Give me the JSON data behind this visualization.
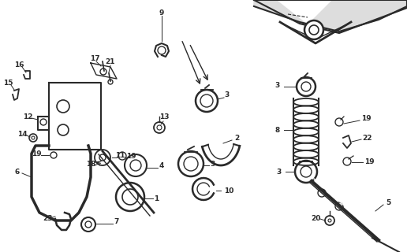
{
  "background_color": "#ffffff",
  "line_color": "#2a2a2a",
  "figsize": [
    5.16,
    3.2
  ],
  "dpi": 100,
  "fontsize_labels": 6.5
}
